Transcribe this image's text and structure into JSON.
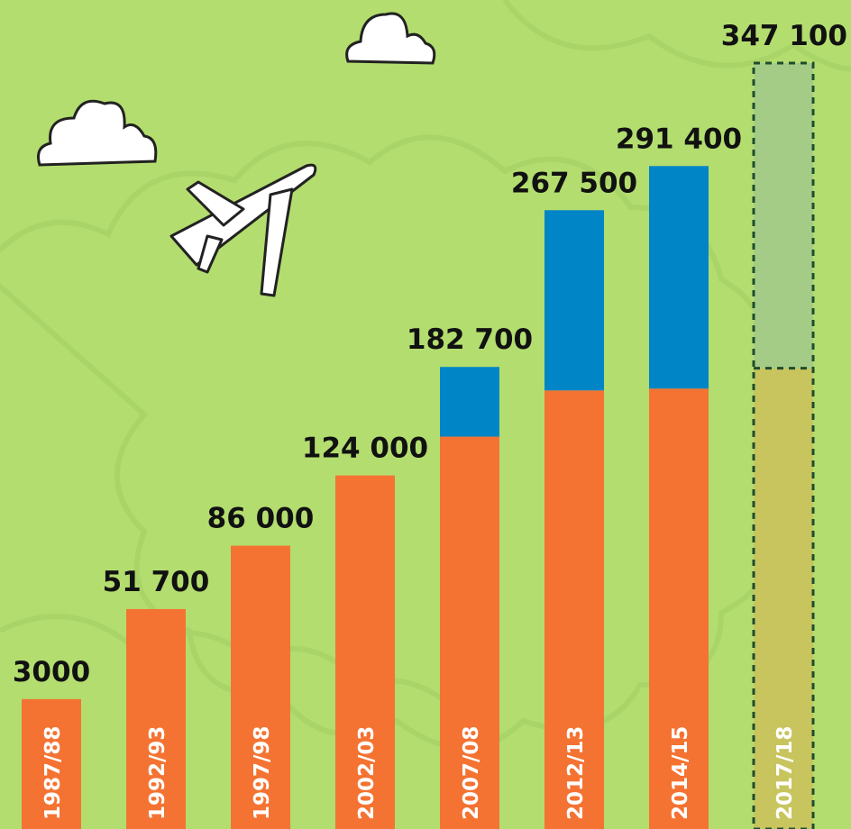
{
  "chart_data": {
    "type": "stacked_bar",
    "categories": [
      "1987/88",
      "1992/93",
      "1997/98",
      "2002/03",
      "2007/08",
      "2012/13",
      "2014/15",
      "2017/18"
    ],
    "series": [
      {
        "color": "#f47332",
        "values": [
          3000,
          51700,
          86000,
          124000,
          145000,
          170000,
          171000,
          182000
        ]
      },
      {
        "color": "#0085c7",
        "values": [
          0,
          0,
          0,
          0,
          37700,
          97500,
          120400,
          165100
        ]
      }
    ],
    "totals": [
      3000,
      51700,
      86000,
      124000,
      182700,
      267500,
      291400,
      347100
    ],
    "total_labels": [
      "3000",
      "51 700",
      "86 000",
      "124 000",
      "182 700",
      "267 500",
      "291 400",
      "347 100"
    ],
    "projected_index": 7,
    "projected_colors": [
      "#c8c45e",
      "#a5cc87"
    ]
  }
}
